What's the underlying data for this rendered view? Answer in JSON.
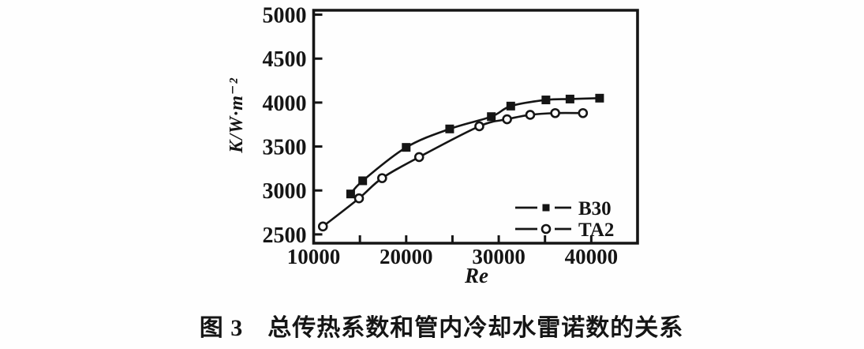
{
  "figure": {
    "caption": "图 3　总传热系数和管内冷却水雷诺数的关系"
  },
  "chart_data": {
    "type": "line",
    "title": "",
    "xlabel": "Re",
    "ylabel": "K/W·m⁻²",
    "xlim": [
      10000,
      45000
    ],
    "ylim": [
      2400,
      5050
    ],
    "grid": false,
    "legend_position": "inside-lower-right",
    "ink_color": "#151515",
    "background": "#fefefe",
    "x_ticks": [
      15000,
      20000,
      25000,
      30000,
      35000,
      40000
    ],
    "x_tick_labels": [
      {
        "value": 10000,
        "text": "10000"
      },
      {
        "value": 20000,
        "text": "20000"
      },
      {
        "value": 30000,
        "text": "30000"
      },
      {
        "value": 40000,
        "text": "40000"
      }
    ],
    "y_ticks": [
      2500,
      3000,
      3500,
      4000,
      4500,
      5000
    ],
    "y_tick_labels": [
      {
        "value": 2500,
        "text": "2500"
      },
      {
        "value": 3000,
        "text": "3000"
      },
      {
        "value": 3500,
        "text": "3500"
      },
      {
        "value": 4000,
        "text": "4000"
      },
      {
        "value": 4500,
        "text": "4500"
      },
      {
        "value": 5000,
        "text": "5000"
      }
    ],
    "series": [
      {
        "name": "B30",
        "marker": "filled-square",
        "color": "#151515",
        "x": [
          14000,
          15300,
          20000,
          24700,
          29200,
          31300,
          35100,
          37700,
          40900
        ],
        "y": [
          2960,
          3110,
          3490,
          3700,
          3840,
          3960,
          4030,
          4040,
          4050
        ]
      },
      {
        "name": "TA2",
        "marker": "open-circle",
        "color": "#151515",
        "x": [
          11000,
          14900,
          17400,
          21400,
          27900,
          30900,
          33400,
          36100,
          39100
        ],
        "y": [
          2590,
          2910,
          3140,
          3380,
          3730,
          3810,
          3860,
          3880,
          3880
        ]
      }
    ]
  }
}
